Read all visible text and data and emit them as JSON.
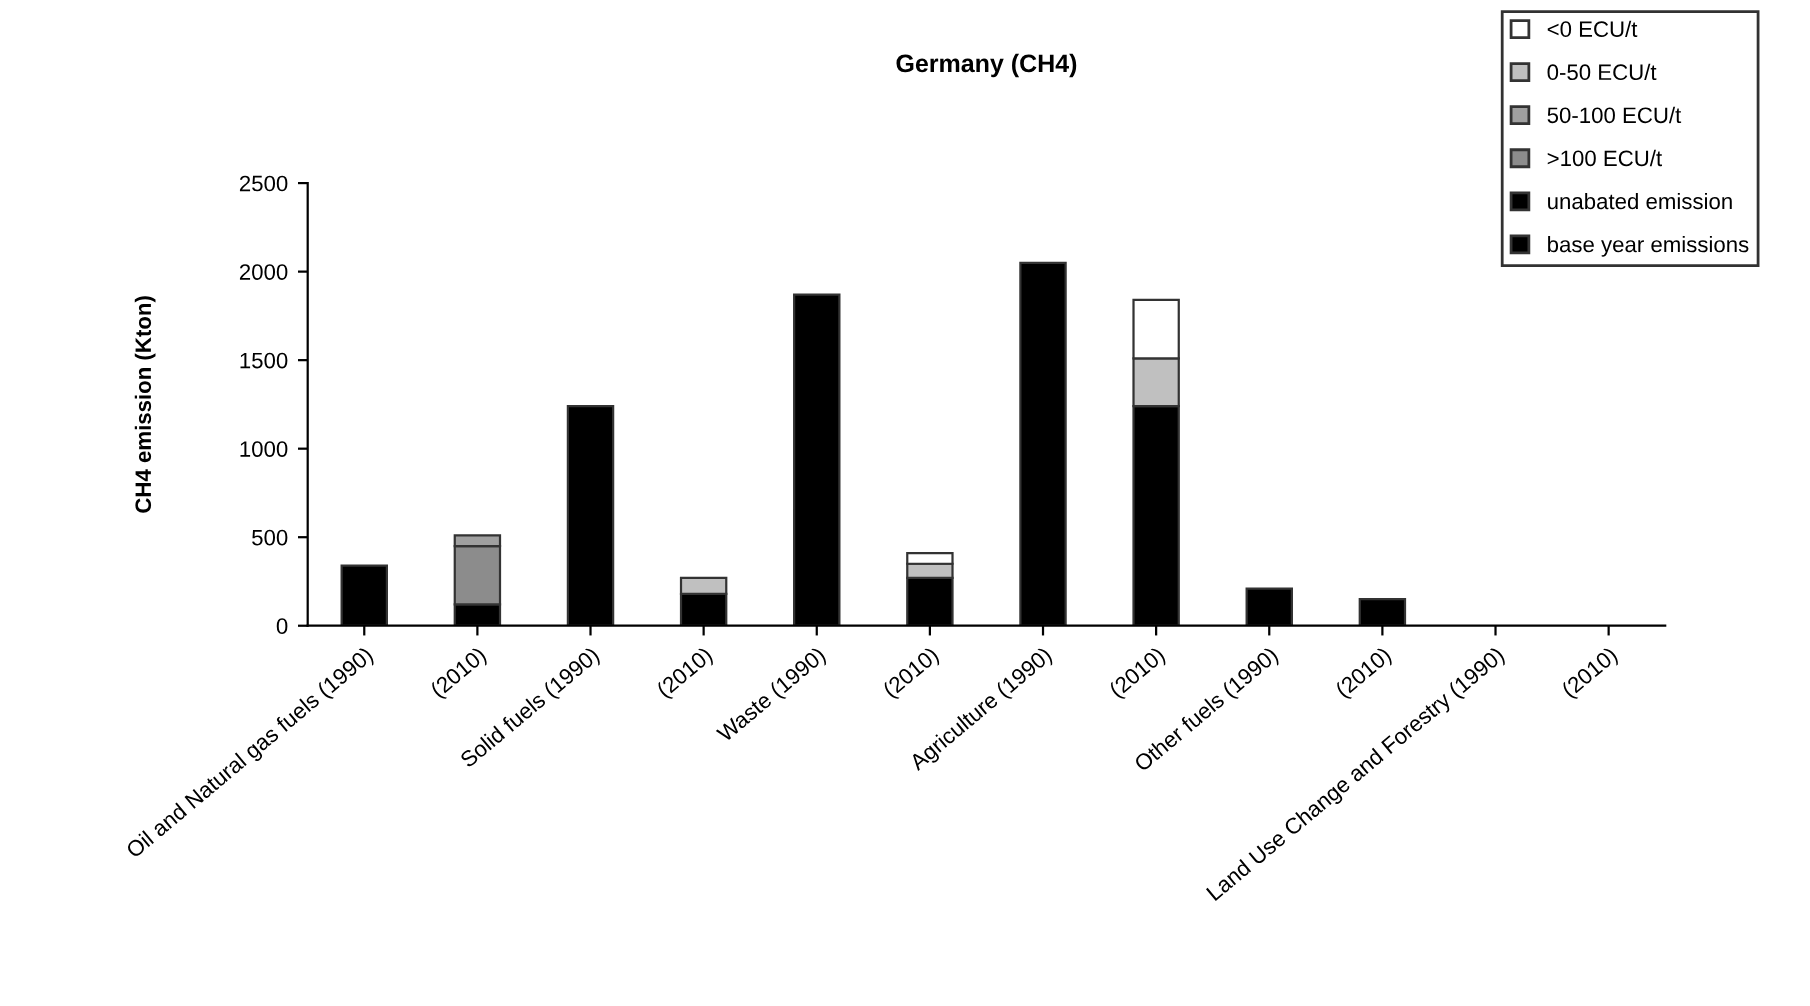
{
  "chart_data": {
    "type": "bar",
    "title": "Germany (CH4)",
    "ylabel": "CH4 emission (Kton)",
    "categories": [
      "Oil and Natural gas fuels (1990)",
      "(2010)",
      "Solid fuels (1990)",
      "(2010)",
      "Waste (1990)",
      "(2010)",
      "Agriculture (1990)",
      "(2010)",
      "Other fuels (1990)",
      "(2010)",
      "Land Use Change and Forestry (1990)",
      "(2010)"
    ],
    "stacked": true,
    "series": [
      {
        "name": "base year emissions",
        "color": "#000000",
        "values": [
          340,
          null,
          1240,
          null,
          1870,
          null,
          2050,
          null,
          210,
          null,
          0,
          null
        ]
      },
      {
        "name": "unabated emission",
        "color": "#000000",
        "values": [
          null,
          120,
          null,
          180,
          null,
          270,
          null,
          1240,
          null,
          150,
          null,
          0
        ]
      },
      {
        "name": ">100 ECU/t",
        "color": "#8c8c8c",
        "values": [
          null,
          330,
          null,
          null,
          null,
          null,
          null,
          null,
          null,
          null,
          null,
          null
        ]
      },
      {
        "name": "50-100 ECU/t",
        "color": "#a0a0a0",
        "values": [
          null,
          60,
          null,
          null,
          null,
          null,
          null,
          null,
          null,
          null,
          null,
          null
        ]
      },
      {
        "name": "0-50 ECU/t",
        "color": "#c0c0c0",
        "values": [
          null,
          null,
          null,
          90,
          null,
          80,
          null,
          270,
          null,
          null,
          null,
          null
        ]
      },
      {
        "name": "<0 ECU/t",
        "color": "#ffffff",
        "values": [
          null,
          null,
          null,
          null,
          null,
          60,
          null,
          330,
          null,
          null,
          null,
          null
        ]
      }
    ],
    "ylim": [
      0,
      2500
    ],
    "yticks": [
      0,
      500,
      1000,
      1500,
      2000,
      2500
    ],
    "grid": false,
    "legend": "top right"
  }
}
